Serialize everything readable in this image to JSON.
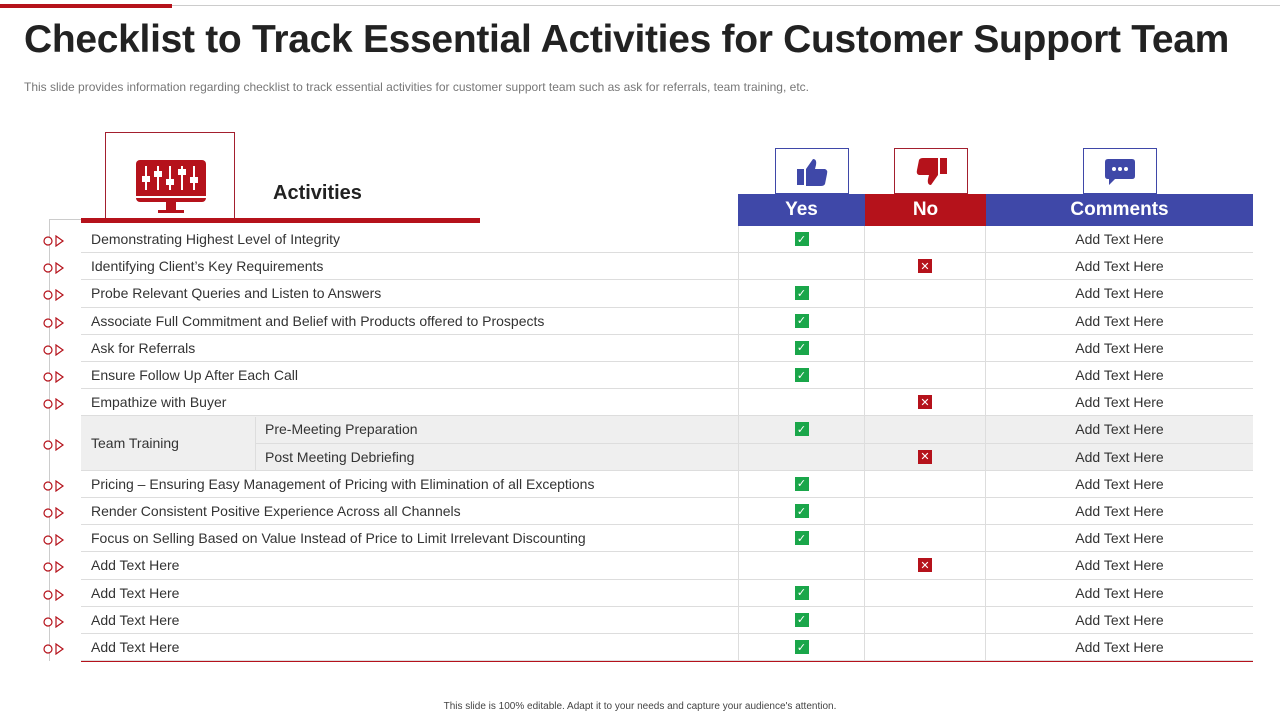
{
  "title": "Checklist to Track Essential Activities for Customer Support Team",
  "subtitle": "This slide provides  information  regarding  checklist to track essential activities for customer support team such as ask for referrals,  team training, etc.",
  "header": {
    "activities": "Activities",
    "yes": "Yes",
    "no": "No",
    "comments": "Comments"
  },
  "colors": {
    "red": "#b5121b",
    "blue": "#3f48a8",
    "check": "#1aa64a"
  },
  "rows": [
    {
      "activity": "Demonstrating Highest  Level of Integrity",
      "status": "yes",
      "comment": "Add Text Here"
    },
    {
      "activity": "Identifying Client’s Key Requirements",
      "status": "no",
      "comment": "Add Text Here"
    },
    {
      "activity": "Probe Relevant Queries and Listen to Answers",
      "status": "yes",
      "comment": "Add Text Here"
    },
    {
      "activity": "Associate Full Commitment and Belief with Products offered to Prospects",
      "status": "yes",
      "comment": "Add Text Here"
    },
    {
      "activity": "Ask for Referrals",
      "status": "yes",
      "comment": "Add Text Here"
    },
    {
      "activity": "Ensure Follow Up After Each Call",
      "status": "yes",
      "comment": "Add Text Here"
    },
    {
      "activity": "Empathize with Buyer",
      "status": "yes_none_no",
      "comment": "Add Text Here"
    },
    {
      "activity": "Pre-Meeting Preparation",
      "group": "Team Training",
      "status": "yes",
      "comment": "Add Text Here"
    },
    {
      "activity": "Post Meeting Debriefing",
      "group": "Team Training",
      "status": "no",
      "comment": "Add Text Here"
    },
    {
      "activity": "Pricing – Ensuring Easy Management of Pricing with Elimination of all Exceptions",
      "status": "yes",
      "comment": "Add Text Here"
    },
    {
      "activity": "Render Consistent Positive Experience Across all Channels",
      "status": "yes",
      "comment": "Add Text Here"
    },
    {
      "activity": "Focus on Selling Based on Value Instead of Price to Limit Irrelevant Discounting",
      "status": "yes",
      "comment": "Add Text Here"
    },
    {
      "activity": "Add Text Here",
      "status": "no",
      "comment": "Add Text Here"
    },
    {
      "activity": "Add Text Here",
      "status": "yes",
      "comment": "Add Text Here"
    },
    {
      "activity": "Add Text Here",
      "status": "yes",
      "comment": "Add Text Here"
    },
    {
      "activity": "Add Text Here",
      "status": "yes",
      "comment": "Add Text Here"
    }
  ],
  "team_training": "Team Training",
  "footer": "This slide is 100% editable.  Adapt it to your needs and capture your audience's attention."
}
